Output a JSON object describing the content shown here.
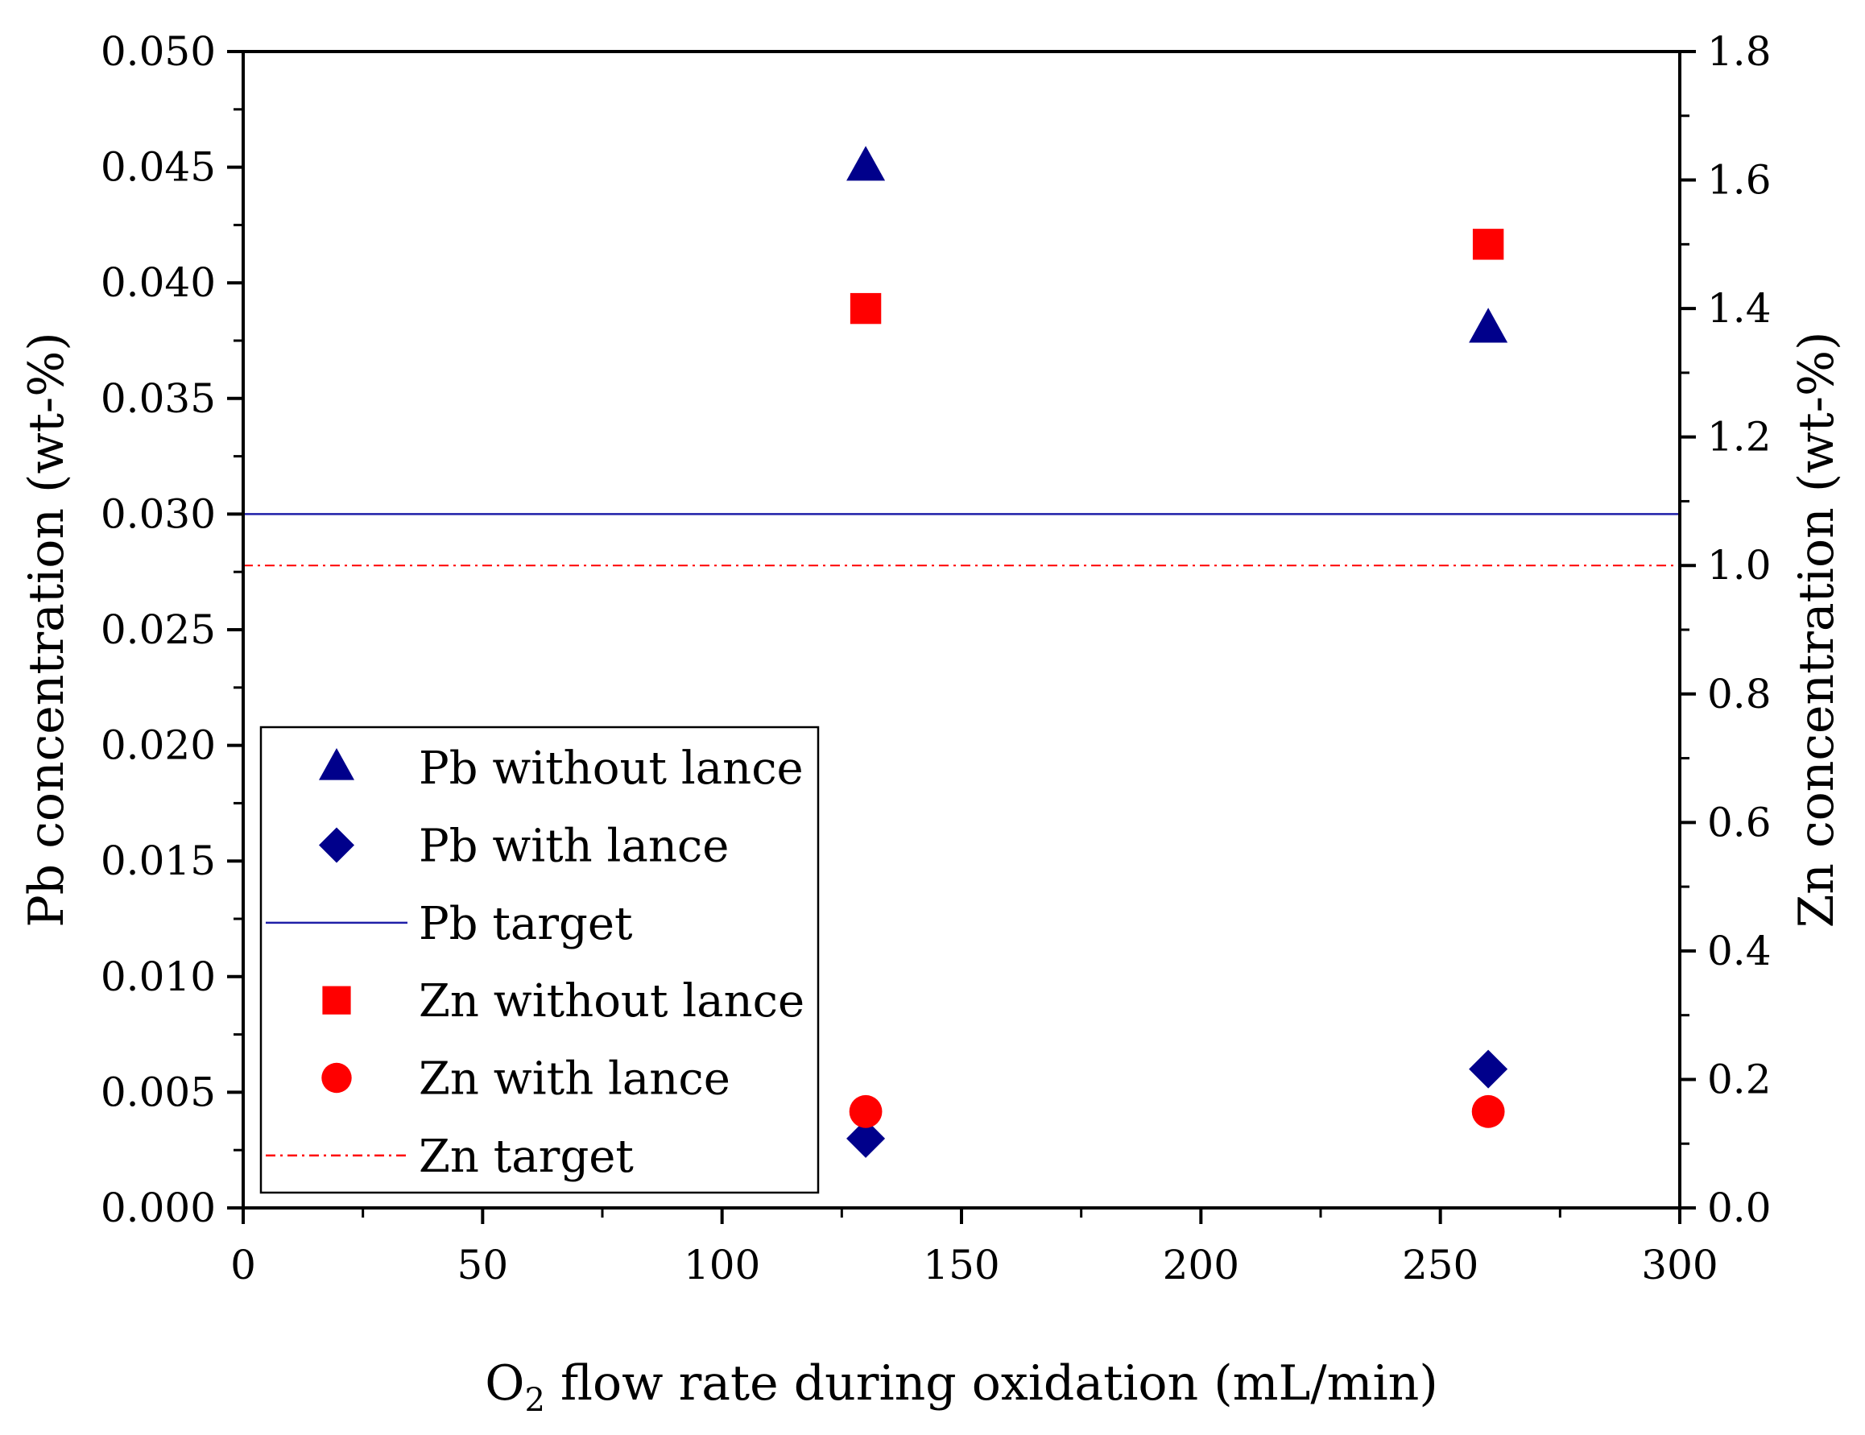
{
  "chart_data": {
    "type": "scatter",
    "x_axis": {
      "label_main": "O",
      "label_sub": "2",
      "label_rest": " flow rate during oxidation (mL/min)",
      "range": [
        0,
        300
      ],
      "major_ticks": [
        0,
        50,
        100,
        150,
        200,
        250,
        300
      ],
      "tick_labels": [
        "0",
        "50",
        "100",
        "150",
        "200",
        "250",
        "300"
      ]
    },
    "y_left": {
      "label": "Pb concentration (wt-%)",
      "range": [
        0,
        0.05
      ],
      "major_ticks": [
        0,
        0.005,
        0.01,
        0.015,
        0.02,
        0.025,
        0.03,
        0.035,
        0.04,
        0.045,
        0.05
      ],
      "tick_labels": [
        "0.000",
        "0.005",
        "0.010",
        "0.015",
        "0.020",
        "0.025",
        "0.030",
        "0.035",
        "0.040",
        "0.045",
        "0.050"
      ]
    },
    "y_right": {
      "label": "Zn concentration (wt-%)",
      "range": [
        0,
        1.8
      ],
      "major_ticks": [
        0,
        0.2,
        0.4,
        0.6,
        0.8,
        1.0,
        1.2,
        1.4,
        1.6,
        1.8
      ],
      "tick_labels": [
        "0.0",
        "0.2",
        "0.4",
        "0.6",
        "0.8",
        "1.0",
        "1.2",
        "1.4",
        "1.6",
        "1.8"
      ]
    },
    "series": [
      {
        "name": "Pb without lance",
        "axis": "left",
        "marker": "triangle",
        "color": "#00008b",
        "points": [
          [
            130,
            0.045
          ],
          [
            260,
            0.038
          ]
        ]
      },
      {
        "name": "Pb with lance",
        "axis": "left",
        "marker": "diamond",
        "color": "#00008b",
        "points": [
          [
            130,
            0.003
          ],
          [
            260,
            0.006
          ]
        ]
      },
      {
        "name": "Pb target",
        "axis": "left",
        "marker": "line",
        "line_style": "solid",
        "color": "#1f1fa8",
        "value": 0.03
      },
      {
        "name": "Zn without lance",
        "axis": "right",
        "marker": "square",
        "color": "#ff0000",
        "points": [
          [
            130,
            1.4
          ],
          [
            260,
            1.5
          ]
        ]
      },
      {
        "name": "Zn with lance",
        "axis": "right",
        "marker": "circle",
        "color": "#ff0000",
        "points": [
          [
            130,
            0.15
          ],
          [
            260,
            0.15
          ]
        ]
      },
      {
        "name": "Zn target",
        "axis": "right",
        "marker": "line",
        "line_style": "dashdot",
        "color": "#ff0000",
        "value": 1.0
      }
    ],
    "legend_position": "lower-left",
    "grid": false
  }
}
